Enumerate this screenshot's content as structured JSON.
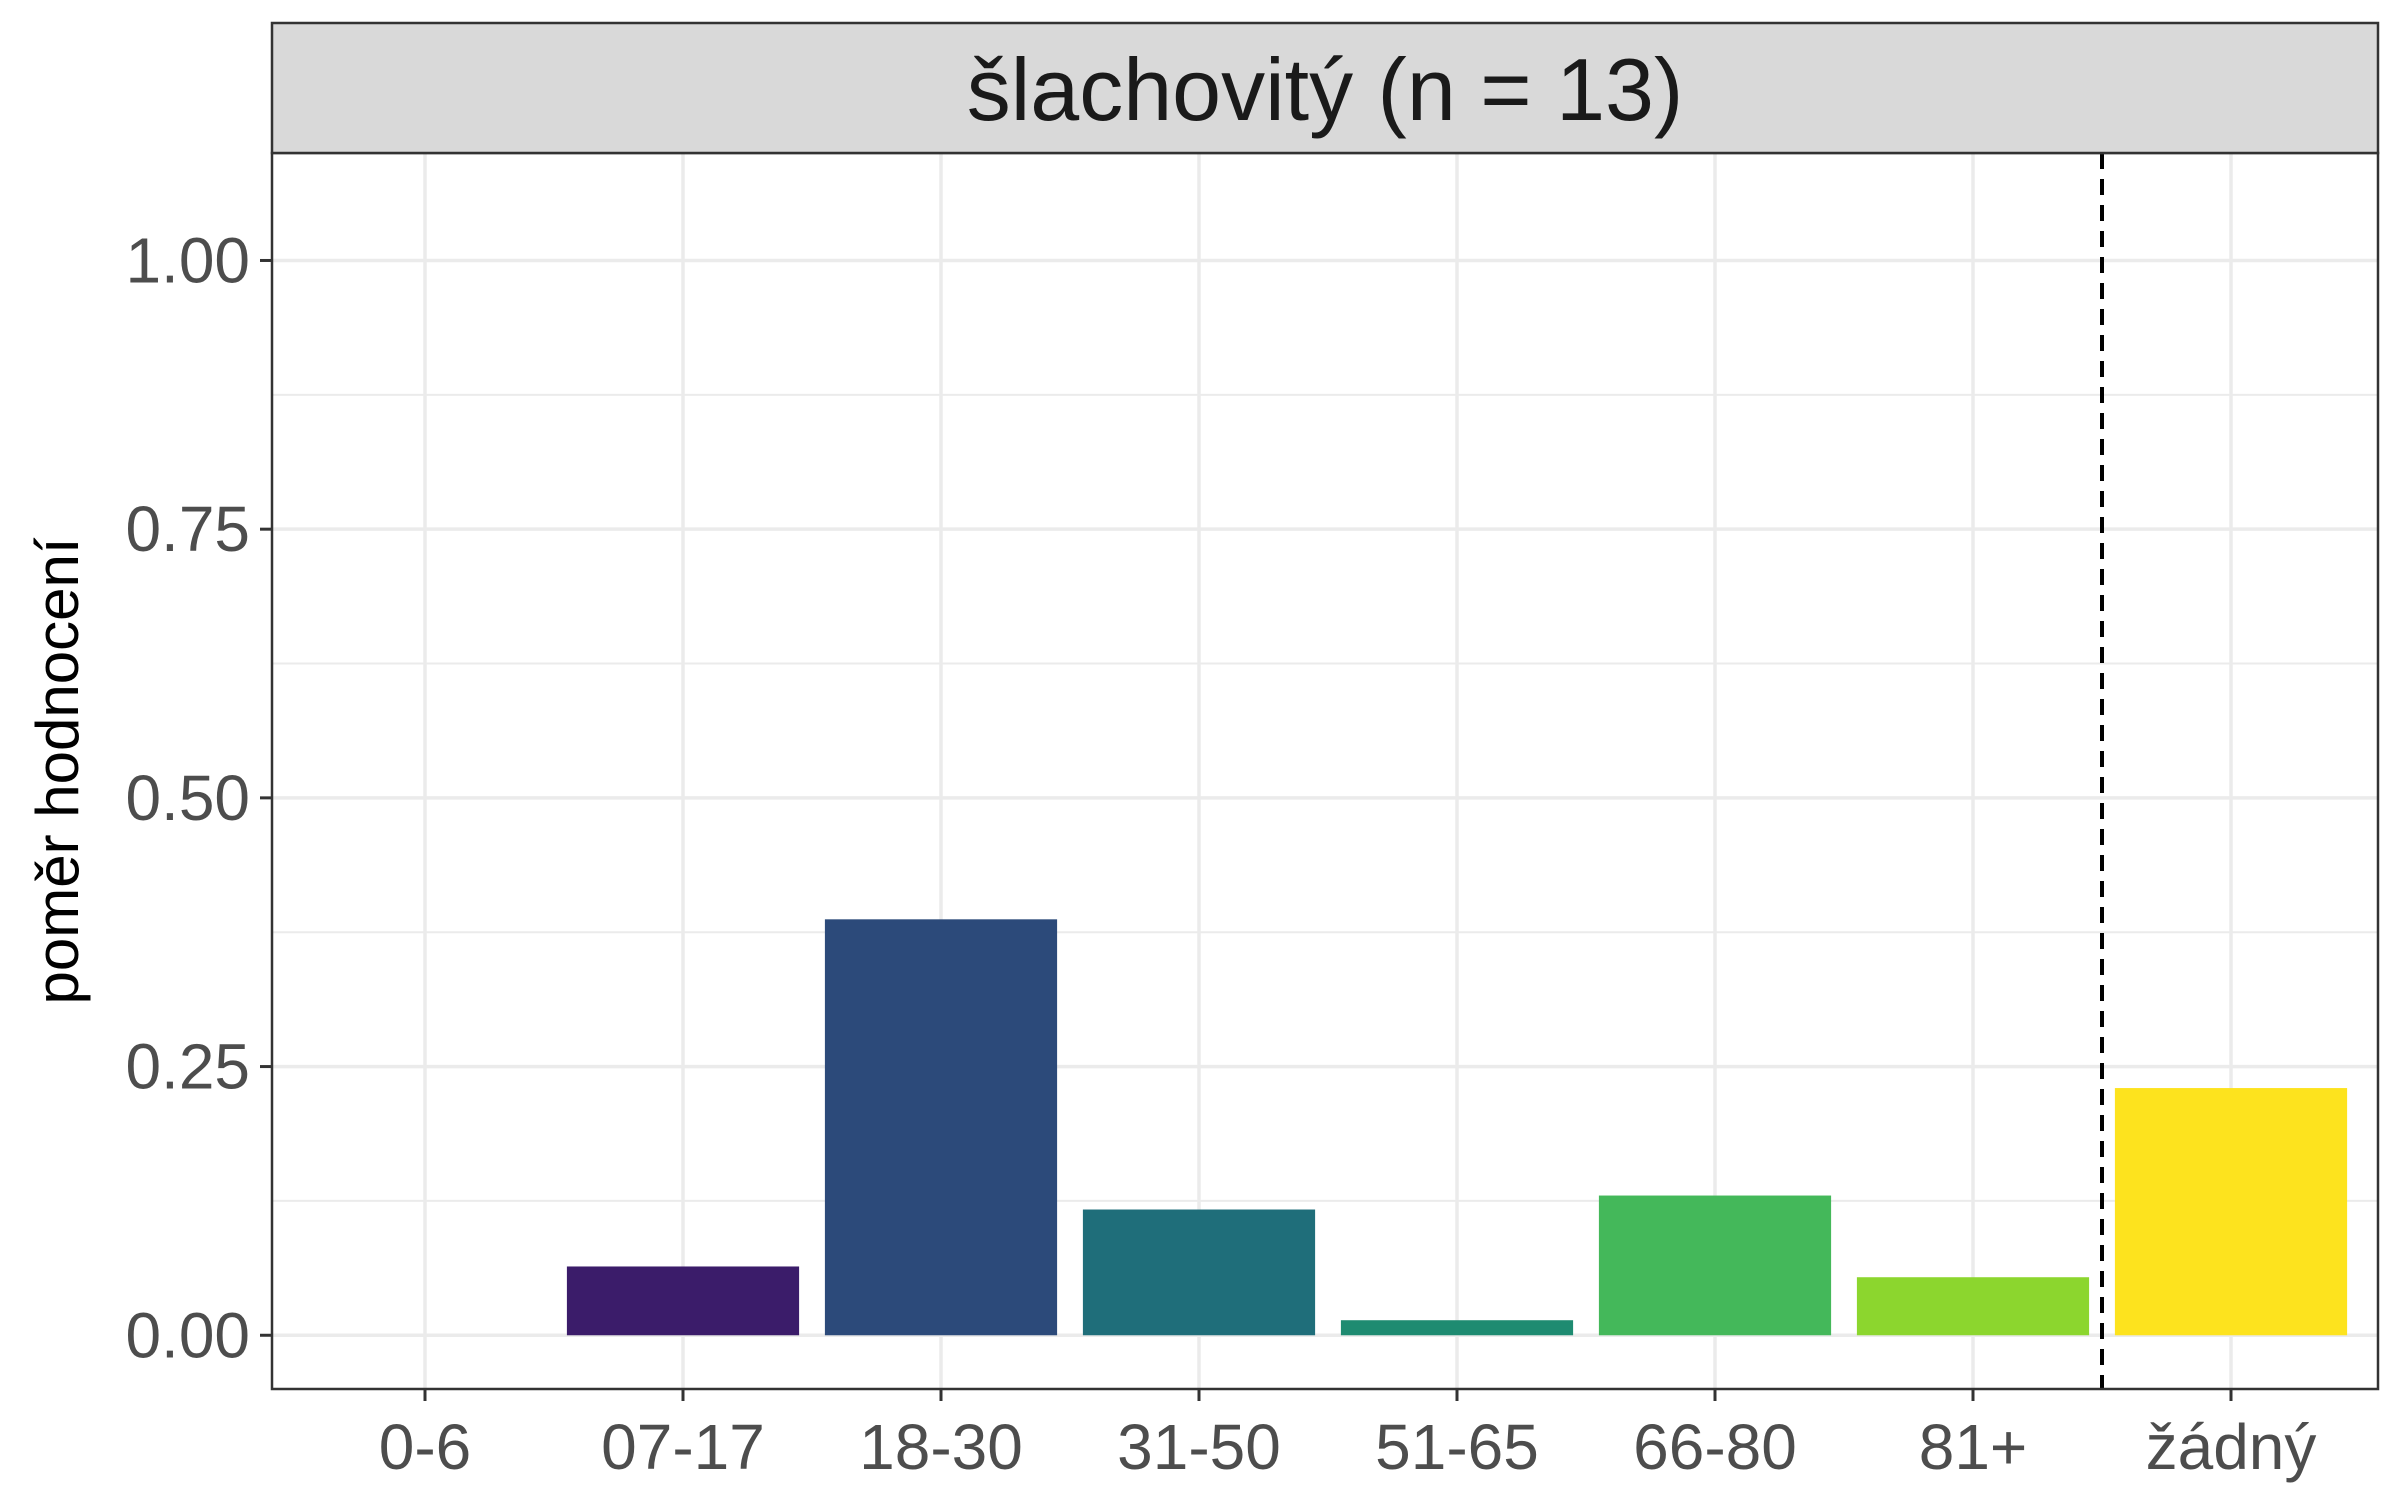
{
  "chart_data": {
    "type": "bar",
    "title": "šlachovitý (n = 13)",
    "xlabel": "",
    "ylabel": "poměr hodnocení",
    "categories": [
      "0-6",
      "07-17",
      "18-30",
      "31-50",
      "51-65",
      "66-80",
      "81+",
      "žádný"
    ],
    "values": [
      0.0,
      0.064,
      0.387,
      0.117,
      0.014,
      0.13,
      0.054,
      0.23
    ],
    "colors": [
      "#440154",
      "#3B1C6A",
      "#2C4A7A",
      "#1F6E7A",
      "#1E8B71",
      "#44B85A",
      "#8CD62E",
      "#FDE31E"
    ],
    "ylim": [
      -0.05,
      1.1
    ],
    "yticks": [
      "0.00",
      "0.25",
      "0.50",
      "0.75",
      "1.00"
    ],
    "reference_line": {
      "style": "dashed",
      "position": "between 81+ and žádný"
    },
    "grid": true
  }
}
